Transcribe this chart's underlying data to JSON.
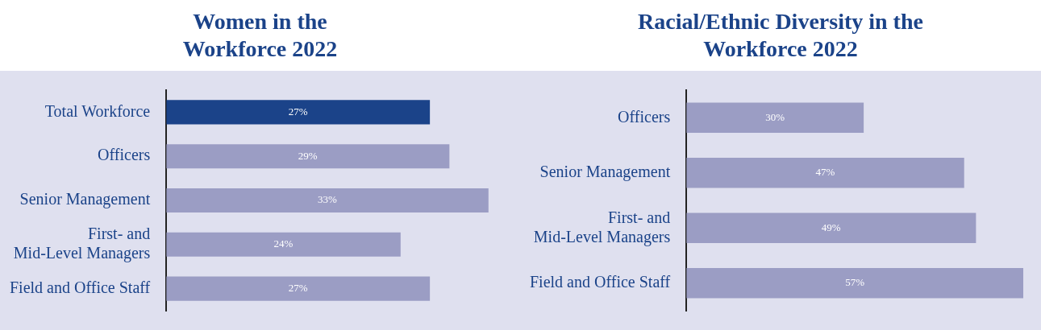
{
  "chart_data": [
    {
      "type": "bar",
      "orientation": "horizontal",
      "title": "Women in the Workforce 2022",
      "categories": [
        "Total Workforce",
        "Officers",
        "Senior Management",
        "First- and\nMid-Level Managers",
        "Field and Office Staff"
      ],
      "values": [
        27,
        29,
        33,
        24,
        27
      ],
      "colors": [
        "#1b4389",
        "#9b9dc4",
        "#9b9dc4",
        "#9b9dc4",
        "#9b9dc4"
      ],
      "value_labels": [
        "27%",
        "29%",
        "33%",
        "24%",
        "27%"
      ]
    },
    {
      "type": "bar",
      "orientation": "horizontal",
      "title": "Racial/Ethnic Diversity in the Workforce 2022",
      "categories": [
        "Officers",
        "Senior Management",
        "First- and\nMid-Level Managers",
        "Field and Office Staff"
      ],
      "values": [
        30,
        47,
        49,
        57
      ],
      "colors": [
        "#9b9dc4",
        "#9b9dc4",
        "#9b9dc4",
        "#9b9dc4"
      ],
      "value_labels": [
        "30%",
        "47%",
        "49%",
        "57%"
      ]
    }
  ]
}
